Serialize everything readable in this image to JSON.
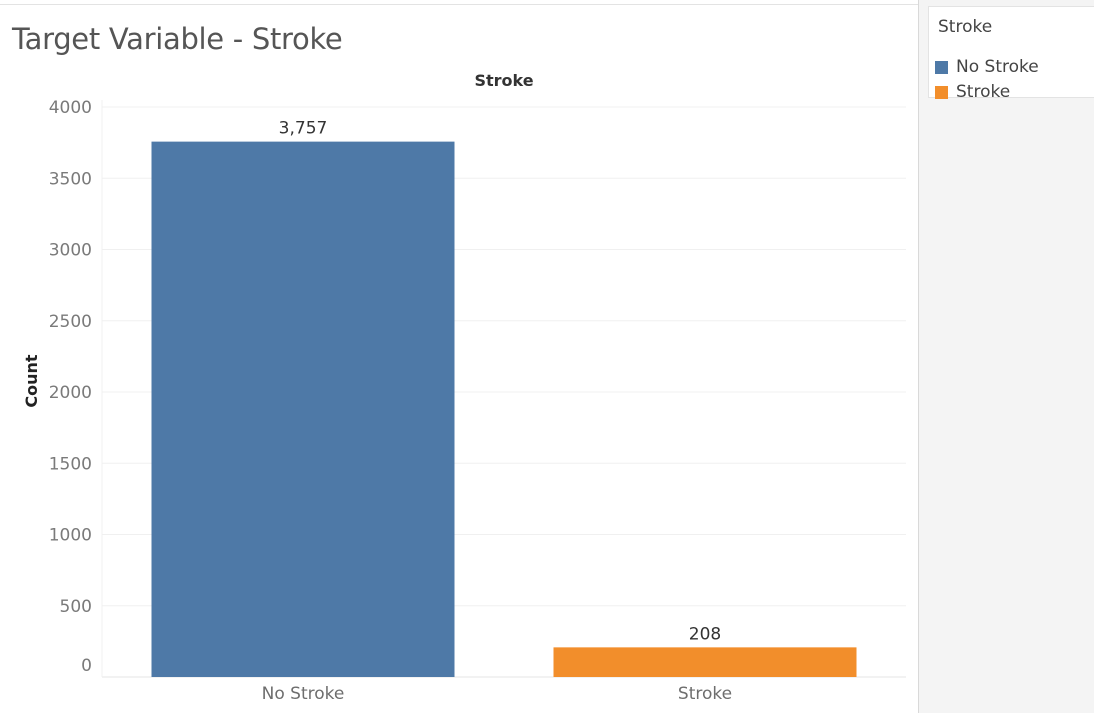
{
  "title": "Target Variable - Stroke",
  "legend": {
    "title": "Stroke",
    "items": [
      {
        "label": "No Stroke",
        "color": "#4e79a7"
      },
      {
        "label": "Stroke",
        "color": "#f28e2b"
      }
    ]
  },
  "chart_data": {
    "type": "bar",
    "title": "Stroke",
    "xlabel": "",
    "ylabel": "Count",
    "categories": [
      "No Stroke",
      "Stroke"
    ],
    "values": [
      3757,
      208
    ],
    "value_labels": [
      "3,757",
      "208"
    ],
    "colors": [
      "#4e79a7",
      "#f28e2b"
    ],
    "y_ticks": [
      0,
      500,
      1000,
      1500,
      2000,
      2500,
      3000,
      3500,
      4000
    ],
    "ylim": [
      0,
      4000
    ],
    "grid": true,
    "legend_position": "top-right"
  }
}
